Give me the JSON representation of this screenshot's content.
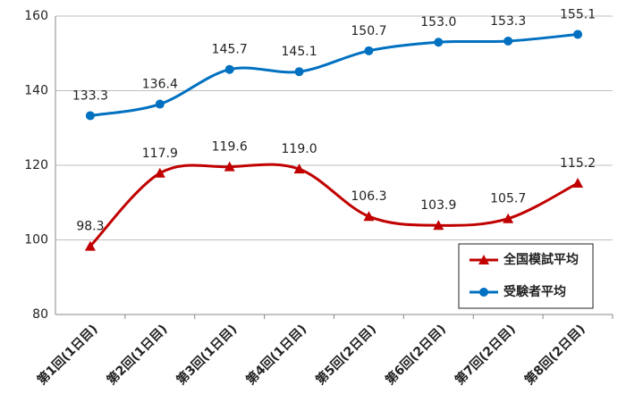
{
  "chart_data": {
    "type": "line",
    "categories": [
      "第1回(1日目)",
      "第2回(1日目)",
      "第3回(1日目)",
      "第4回(1日目)",
      "第5回(2日目)",
      "第6回(2日目)",
      "第7回(2日目)",
      "第8回(2日目)"
    ],
    "series": [
      {
        "name": "全国模試平均",
        "color": "#c00000",
        "marker": "triangle",
        "values": [
          98.3,
          117.9,
          119.6,
          119.0,
          106.3,
          103.9,
          105.7,
          115.2
        ],
        "value_labels": [
          "98.3",
          "117.9",
          "119.6",
          "119.0",
          "106.3",
          "103.9",
          "105.7",
          "115.2"
        ]
      },
      {
        "name": "受験者平均",
        "color": "#0070c0",
        "marker": "circle",
        "values": [
          133.3,
          136.4,
          145.7,
          145.1,
          150.7,
          153.0,
          153.3,
          155.1
        ],
        "value_labels": [
          "133.3",
          "136.4",
          "145.7",
          "145.1",
          "150.7",
          "153.0",
          "153.3",
          "155.1"
        ]
      }
    ],
    "ylim": [
      80,
      160
    ],
    "yticks": [
      80,
      100,
      120,
      140,
      160
    ],
    "grid": true,
    "smooth": true,
    "legend": "lower right"
  }
}
